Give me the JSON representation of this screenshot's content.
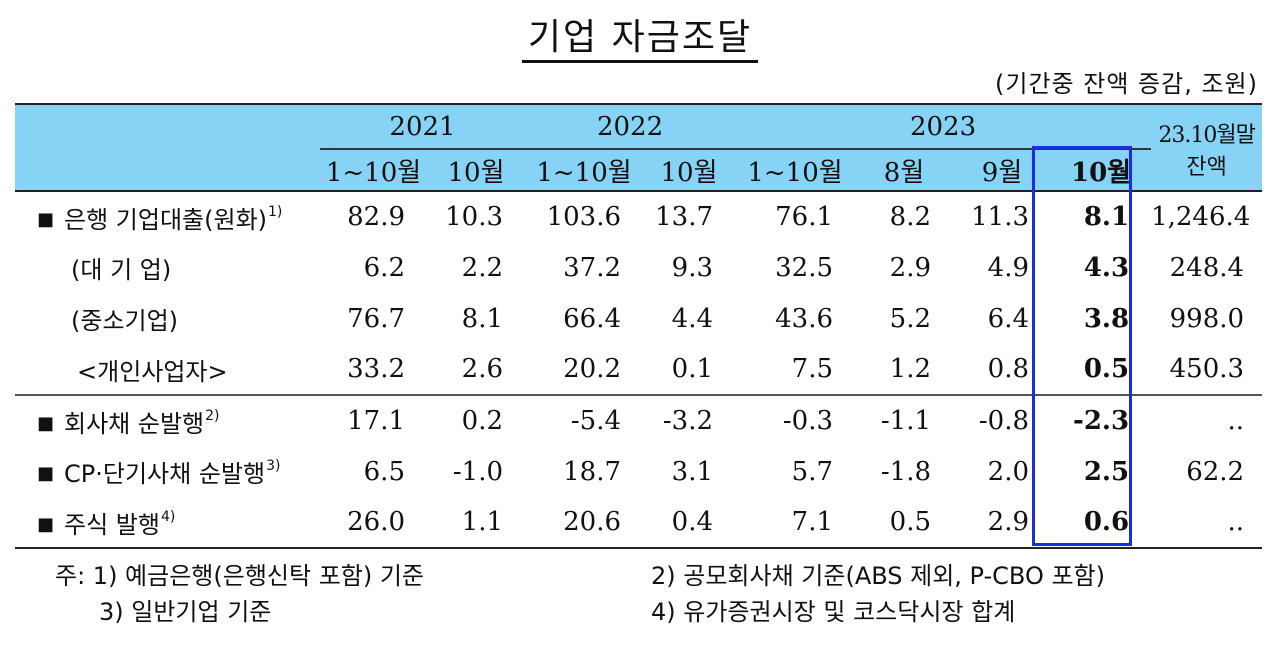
{
  "title": "기업 자금조달",
  "unit": "(기간중 잔액 증감, 조원)",
  "header": {
    "years": [
      "2021",
      "2022",
      "2023"
    ],
    "balance_top": "23.10월말",
    "balance_bottom": "잔액",
    "periods": [
      "1~10월",
      "10월",
      "1~10월",
      "10월",
      "1~10월",
      "8월",
      "9월",
      "10월"
    ]
  },
  "rows": [
    {
      "label": "은행 기업대출(원화)",
      "note": "1)",
      "values": [
        "82.9",
        "10.3",
        "103.6",
        "13.7",
        "76.1",
        "8.2",
        "11.3",
        "8.1",
        "1,246.4"
      ]
    },
    {
      "label": "(대 기 업)",
      "values": [
        "6.2",
        "2.2",
        "37.2",
        "9.3",
        "32.5",
        "2.9",
        "4.9",
        "4.3",
        "248.4"
      ]
    },
    {
      "label": "(중소기업)",
      "values": [
        "76.7",
        "8.1",
        "66.4",
        "4.4",
        "43.6",
        "5.2",
        "6.4",
        "3.8",
        "998.0"
      ]
    },
    {
      "label": "<개인사업자>",
      "values": [
        "33.2",
        "2.6",
        "20.2",
        "0.1",
        "7.5",
        "1.2",
        "0.8",
        "0.5",
        "450.3"
      ]
    },
    {
      "label": "회사채 순발행",
      "note": "2)",
      "values": [
        "17.1",
        "0.2",
        "-5.4",
        "-3.2",
        "-0.3",
        "-1.1",
        "-0.8",
        "-2.3",
        ".."
      ]
    },
    {
      "label": "CP·단기사채 순발행",
      "note": "3)",
      "values": [
        "6.5",
        "-1.0",
        "18.7",
        "3.1",
        "5.7",
        "-1.8",
        "2.0",
        "2.5",
        "62.2"
      ]
    },
    {
      "label": "주식 발행",
      "note": "4)",
      "values": [
        "26.0",
        "1.1",
        "20.6",
        "0.4",
        "7.1",
        "0.5",
        "2.9",
        "0.6",
        ".."
      ]
    }
  ],
  "bullet": "■",
  "notes": {
    "n1": "주: 1) 예금은행(은행신탁 포함) 기준",
    "n2": "2) 공모회사채 기준(ABS 제외, P-CBO 포함)",
    "n3": "3) 일반기업 기준",
    "n4": "4) 유가증권시장 및 코스닥시장 합계"
  },
  "highlight_color": "#1a2ee0",
  "header_color": "#87d3f5"
}
